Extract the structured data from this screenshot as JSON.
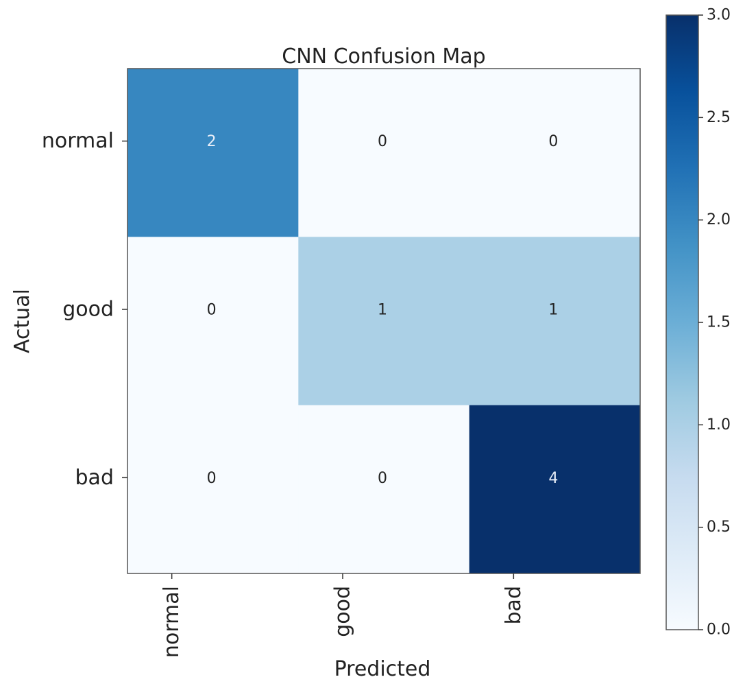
{
  "chart_data": {
    "type": "heatmap",
    "title": "CNN Confusion Map",
    "xlabel": "Predicted",
    "ylabel": "Actual",
    "x_categories": [
      "normal",
      "good",
      "bad"
    ],
    "y_categories": [
      "normal",
      "good",
      "bad"
    ],
    "matrix": [
      [
        2,
        0,
        0
      ],
      [
        0,
        1,
        1
      ],
      [
        0,
        0,
        4
      ]
    ],
    "colormap": "Blues",
    "vmin": 0.0,
    "vmax": 3.0,
    "colorbar_ticks": [
      "0.0",
      "0.5",
      "1.0",
      "1.5",
      "2.0",
      "2.5",
      "3.0"
    ],
    "text_color_dark": "#222222",
    "text_color_light": "#e8eef8"
  }
}
